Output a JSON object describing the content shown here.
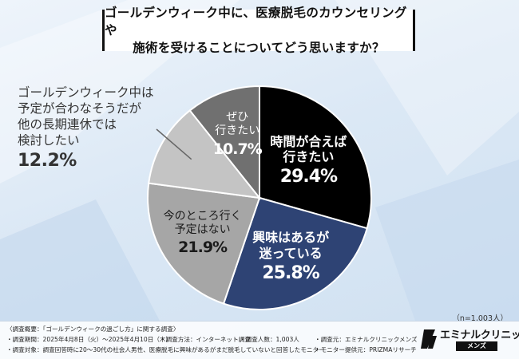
{
  "title": {
    "line1": "ゴールデンウィーク中に、医療脱毛のカウンセリングや",
    "line2": "施術を受けることについてどう思いますか？"
  },
  "chart_data": {
    "type": "pie",
    "start": "12 o'clock, clockwise",
    "slices": [
      {
        "label_lines": [
          "時間が合えば",
          "行きたい"
        ],
        "value": 29.4,
        "value_text": "29.4%",
        "color": "#000000",
        "text_color": "#ffffff"
      },
      {
        "label_lines": [
          "興味はあるが",
          "迷っている"
        ],
        "value": 25.8,
        "value_text": "25.8%",
        "color": "#2e4374",
        "text_color": "#ffffff"
      },
      {
        "label_lines": [
          "今のところ行く",
          "予定はない"
        ],
        "value": 21.9,
        "value_text": "21.9%",
        "color": "#a6a6a6",
        "text_color": "#1a1a1a"
      },
      {
        "label_lines": [
          "ゴールデンウィーク中は",
          "予定が合わなそうだが",
          "他の長期連休では",
          "検討したい"
        ],
        "value": 12.2,
        "value_text": "12.2%",
        "color": "#c4c4c4",
        "text_color": "#333333"
      },
      {
        "label_lines": [
          "ぜひ",
          "行きたい"
        ],
        "value": 10.7,
        "value_text": "10.7%",
        "color": "#707070",
        "text_color": "#ffffff"
      }
    ]
  },
  "sample_size": "（n=1,003人）",
  "footer": {
    "overview": "〈調査概要：「ゴールデンウィークの過ごし方」に関する調査〉",
    "period": "・調査期間：2025年4月8日（火）～2025年4月10日（木）",
    "method": "・調査方法：インターネット調査",
    "count": "・調査人数：1,003人",
    "source": "・調査元：エミナルクリニックメンズ",
    "target": "・調査対象：調査回答時に20～30代の社会人男性、医療脱毛に興味があるがまだ脱毛していないと回答したモニター",
    "provider": "・モニター提供元：PRIZMAリサーチ"
  },
  "logo": {
    "name": "エミナルクリニック",
    "sub": "メンズ"
  }
}
